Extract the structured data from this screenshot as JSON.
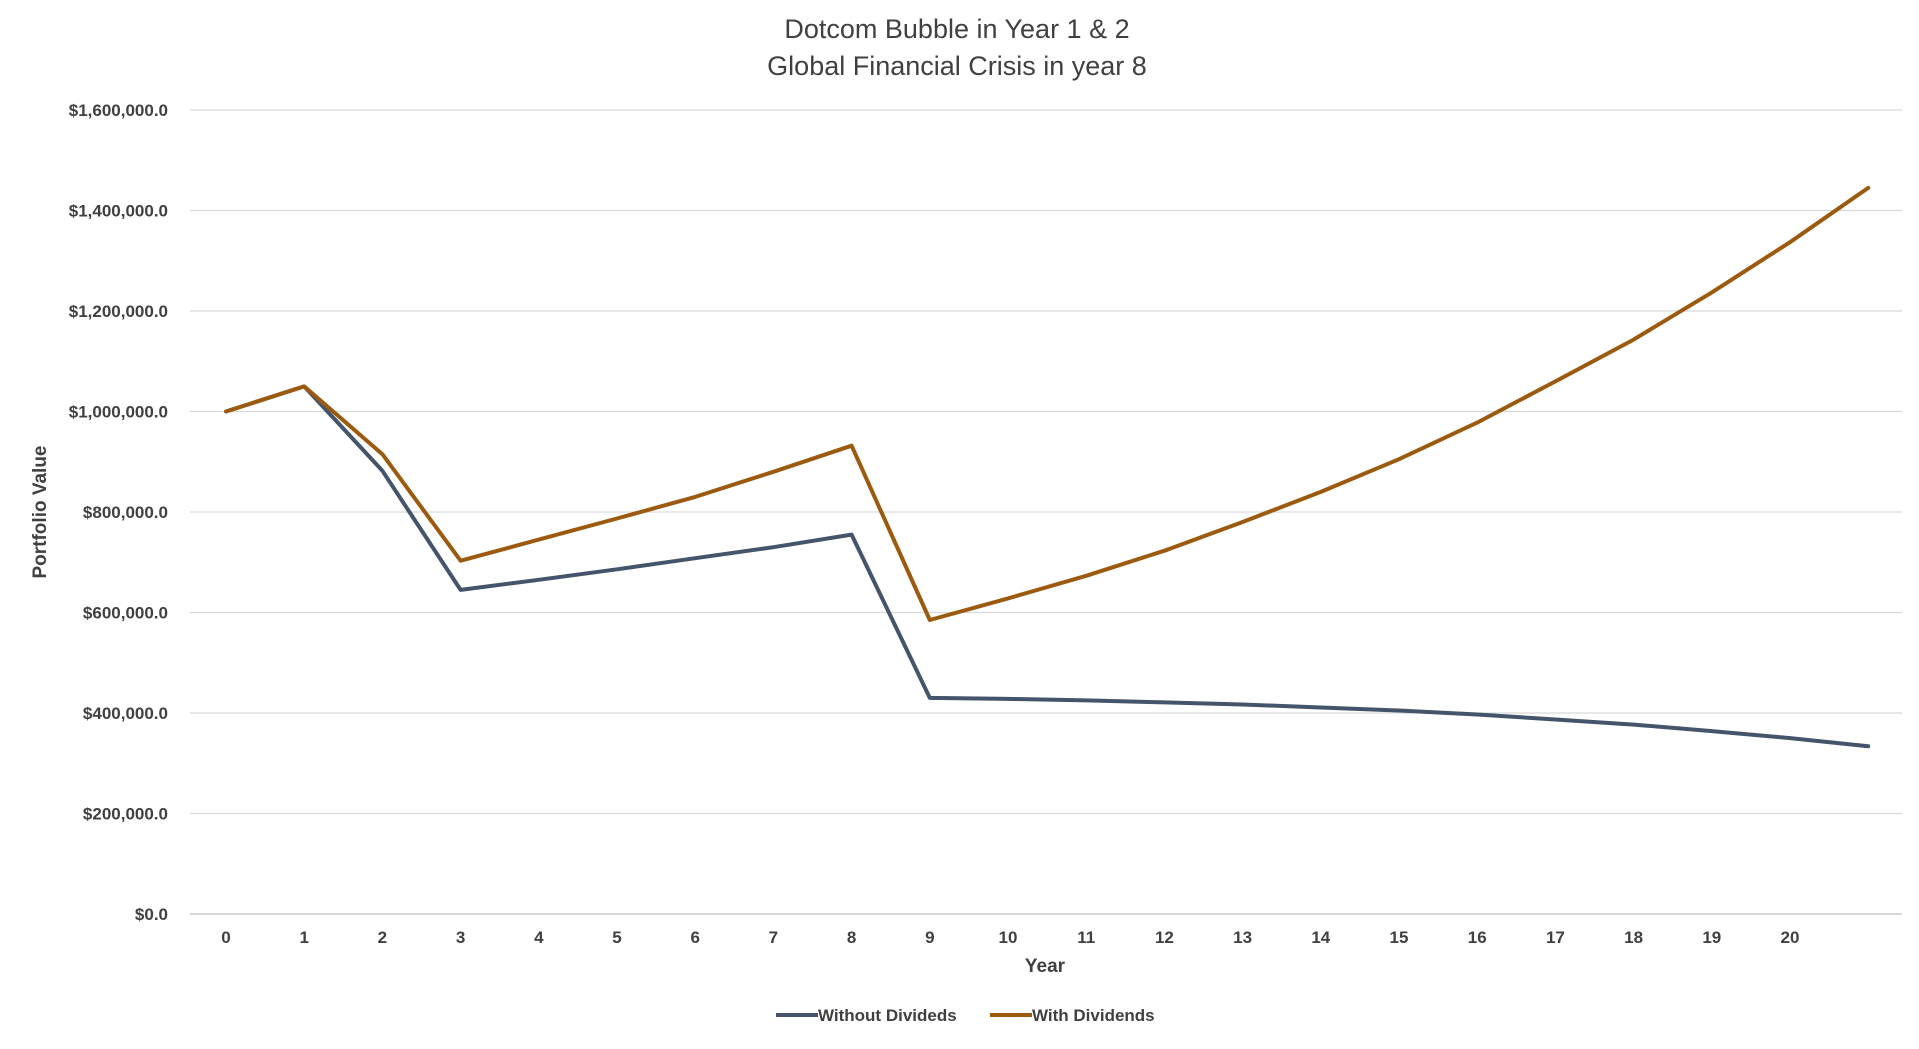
{
  "chart_data": {
    "type": "line",
    "title": [
      "Dotcom Bubble in Year 1 & 2",
      "Global Financial Crisis in year 8"
    ],
    "xlabel": "Year",
    "ylabel": "Portfolio Value",
    "x": [
      0,
      1,
      2,
      3,
      4,
      5,
      6,
      7,
      8,
      9,
      10,
      11,
      12,
      13,
      14,
      15,
      16,
      17,
      18,
      19,
      20,
      21
    ],
    "x_tick_labels": [
      "0",
      "1",
      "2",
      "3",
      "4",
      "5",
      "6",
      "7",
      "8",
      "9",
      "10",
      "11",
      "12",
      "13",
      "14",
      "15",
      "16",
      "17",
      "18",
      "19",
      "20",
      ""
    ],
    "ylim": [
      0,
      1600000
    ],
    "y_ticks": [
      0,
      200000,
      400000,
      600000,
      800000,
      1000000,
      1200000,
      1400000,
      1600000
    ],
    "y_tick_labels": [
      "$0.0",
      "$200,000.0",
      "$400,000.0",
      "$600,000.0",
      "$800,000.0",
      "$1,000,000.0",
      "$1,200,000.0",
      "$1,400,000.0",
      "$1,600,000.0"
    ],
    "grid": true,
    "legend_position": "bottom",
    "series": [
      {
        "name": "Without Divideds",
        "color": "#44546a",
        "values": [
          1000000,
          1050000,
          882000,
          645000,
          665000,
          686000,
          708000,
          730000,
          755000,
          430000,
          428000,
          425000,
          421000,
          417000,
          411000,
          405000,
          397000,
          387000,
          377000,
          364000,
          350000,
          334000
        ]
      },
      {
        "name": "With Dividends",
        "color": "#9c5a0f",
        "values": [
          1000000,
          1050000,
          915000,
          703000,
          745000,
          787000,
          830000,
          880000,
          932000,
          585000,
          628000,
          673000,
          723000,
          780000,
          840000,
          905000,
          978000,
          1060000,
          1143000,
          1237000,
          1337000,
          1445000
        ]
      }
    ]
  }
}
